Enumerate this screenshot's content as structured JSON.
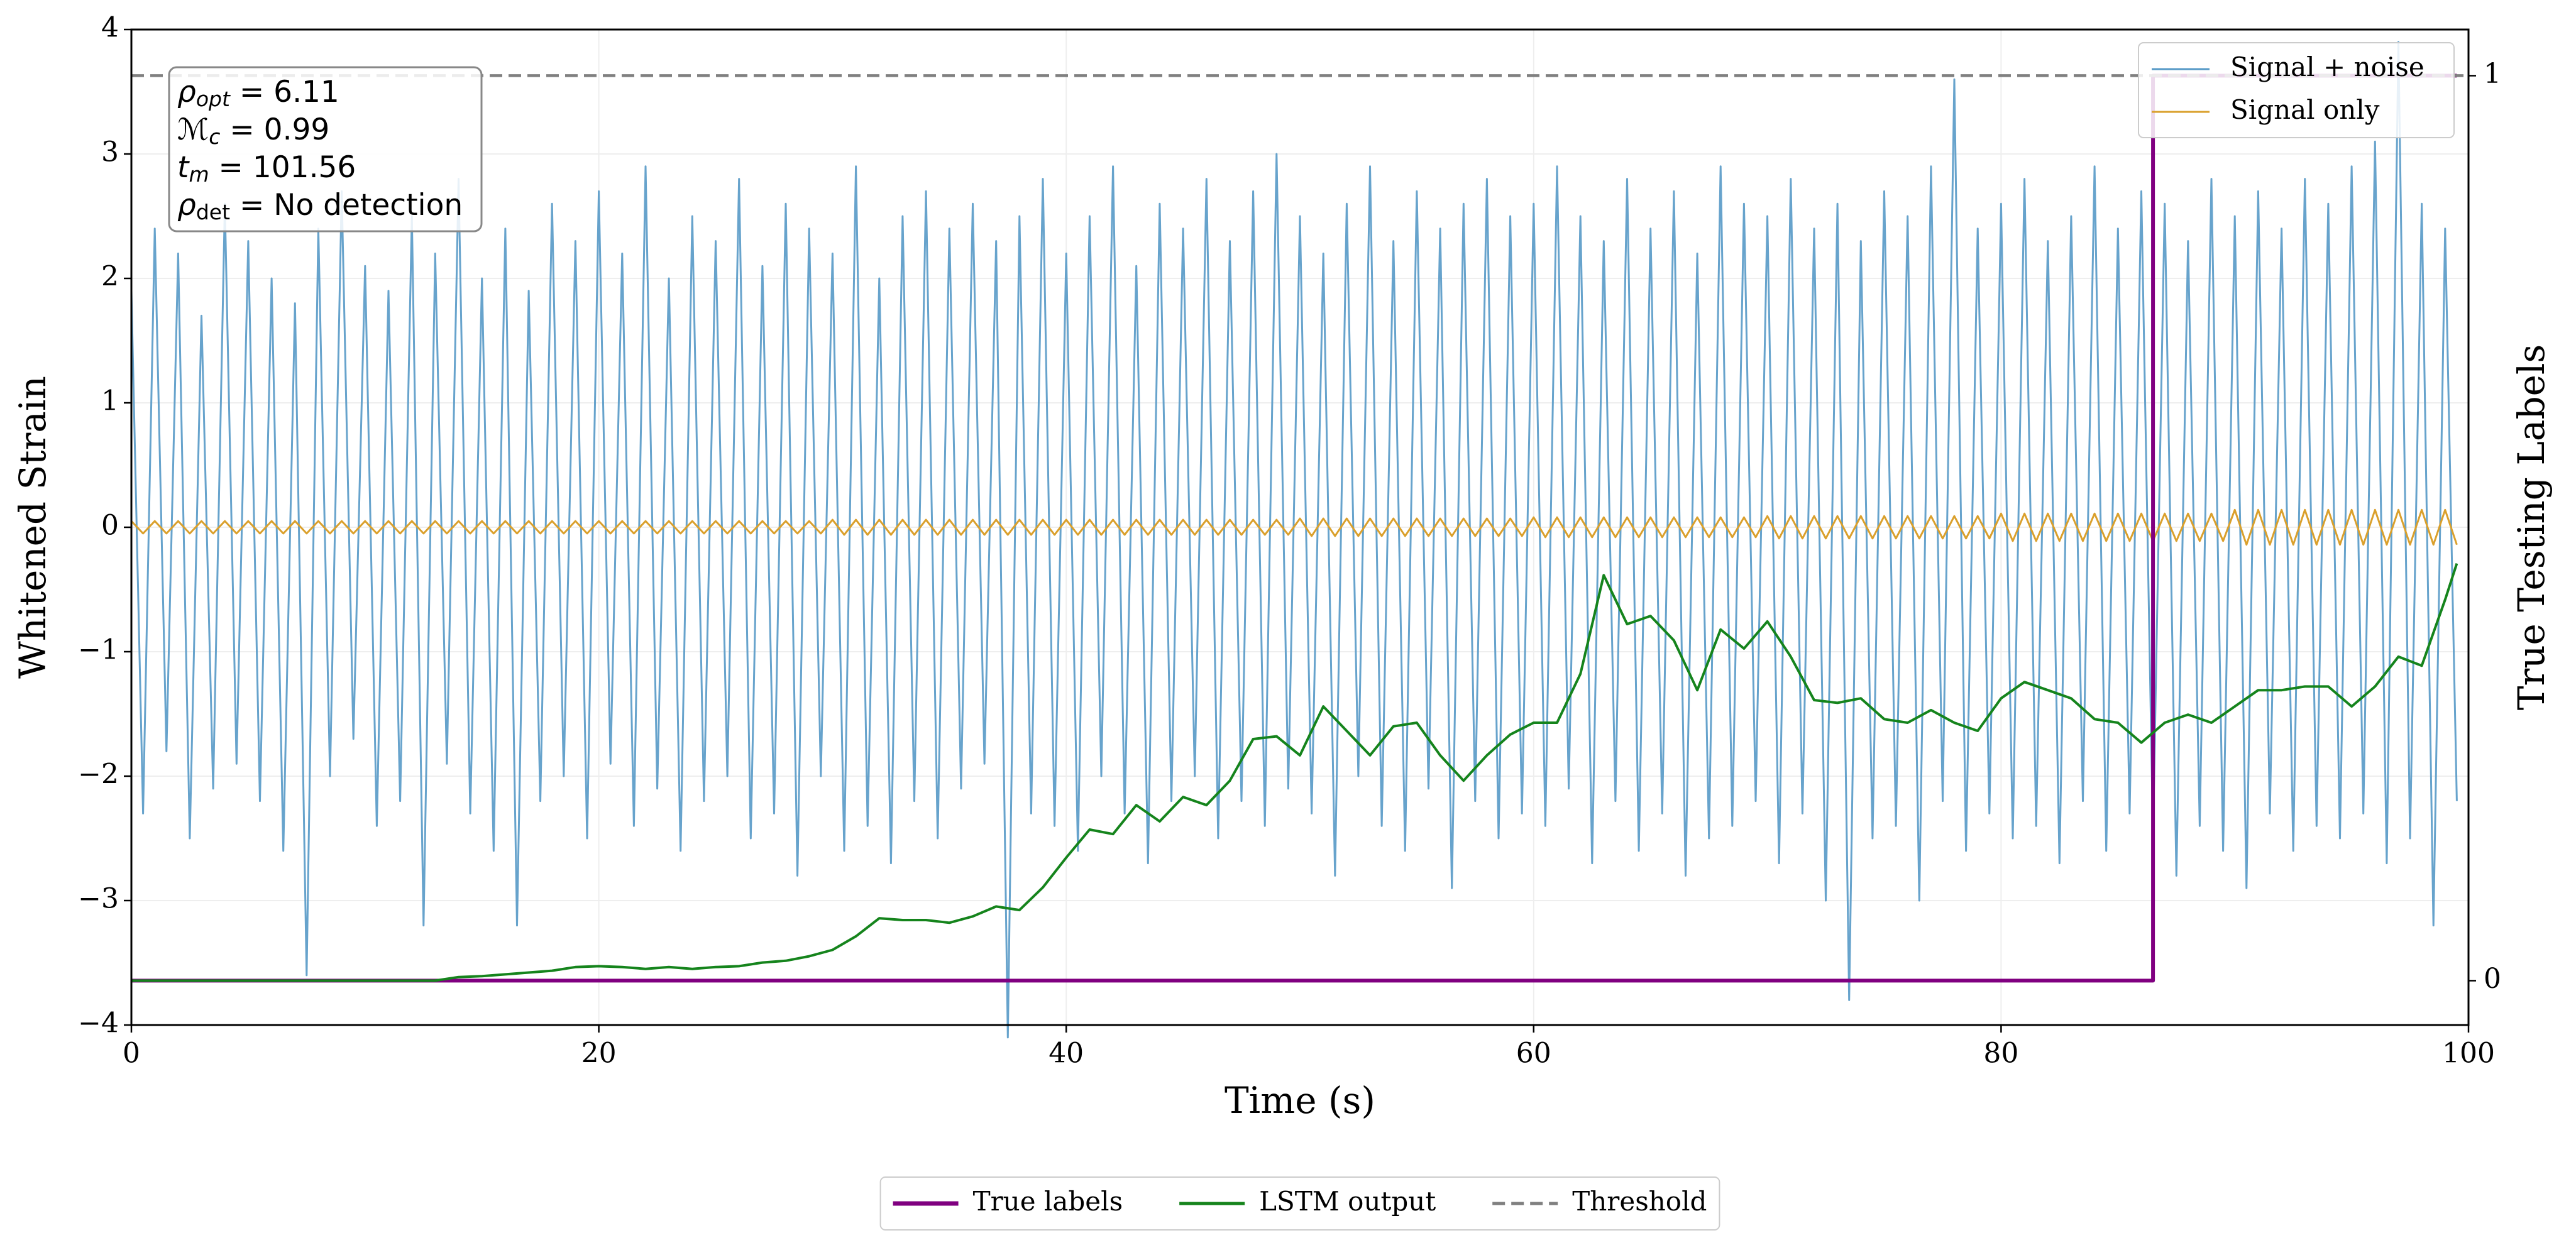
{
  "chart_data": {
    "type": "line",
    "xlabel": "Time (s)",
    "ylabel": "Whitened Strain",
    "y2label": "True Testing Labels",
    "xlim": [
      0,
      100
    ],
    "xticks": [
      0,
      20,
      40,
      60,
      80,
      100
    ],
    "ylim": [
      -4,
      4
    ],
    "yticks": [
      {
        "value": -4,
        "label": "−4"
      },
      {
        "value": -3,
        "label": "−3"
      },
      {
        "value": -2,
        "label": "−2"
      },
      {
        "value": -1,
        "label": "−1"
      },
      0,
      1,
      2,
      3,
      4
    ],
    "y2lim": [
      -0.049,
      1.051
    ],
    "y2ticks": [
      0,
      1
    ],
    "grid": true,
    "legend_loc": "upper right",
    "legend2_loc": "lower center",
    "annotations": [
      {
        "symbol": "ρ",
        "sub": "opt",
        "text": " = 6.11"
      },
      {
        "symbol": "ℳ",
        "sub": "c",
        "text": " = 0.99"
      },
      {
        "symbol": "t",
        "sub": "m",
        "text": " = 101.56"
      },
      {
        "symbol": "ρ",
        "sub": "det",
        "text": " = No detection"
      }
    ],
    "x": [
      0,
      0.5,
      1,
      1.5,
      2,
      2.5,
      3,
      3.5,
      4,
      4.5,
      5,
      5.5,
      6,
      6.5,
      7,
      7.5,
      8,
      8.5,
      9,
      9.5,
      10,
      10.5,
      11,
      11.5,
      12,
      12.5,
      13,
      13.5,
      14,
      14.5,
      15,
      15.5,
      16,
      16.5,
      17,
      17.5,
      18,
      18.5,
      19,
      19.5,
      20,
      20.5,
      21,
      21.5,
      22,
      22.5,
      23,
      23.5,
      24,
      24.5,
      25,
      25.5,
      26,
      26.5,
      27,
      27.5,
      28,
      28.5,
      29,
      29.5,
      30,
      30.5,
      31,
      31.5,
      32,
      32.5,
      33,
      33.5,
      34,
      34.5,
      35,
      35.5,
      36,
      36.5,
      37,
      37.5,
      38,
      38.5,
      39,
      39.5,
      40,
      40.5,
      41,
      41.5,
      42,
      42.5,
      43,
      43.5,
      44,
      44.5,
      45,
      45.5,
      46,
      46.5,
      47,
      47.5,
      48,
      48.5,
      49,
      49.5,
      50,
      50.5,
      51,
      51.5,
      52,
      52.5,
      53,
      53.5,
      54,
      54.5,
      55,
      55.5,
      56,
      56.5,
      57,
      57.5,
      58,
      58.5,
      59,
      59.5,
      60,
      60.5,
      61,
      61.5,
      62,
      62.5,
      63,
      63.5,
      64,
      64.5,
      65,
      65.5,
      66,
      66.5,
      67,
      67.5,
      68,
      68.5,
      69,
      69.5,
      70,
      70.5,
      71,
      71.5,
      72,
      72.5,
      73,
      73.5,
      74,
      74.5,
      75,
      75.5,
      76,
      76.5,
      77,
      77.5,
      78,
      78.5,
      79,
      79.5,
      80,
      80.5,
      81,
      81.5,
      82,
      82.5,
      83,
      83.5,
      84,
      84.5,
      85,
      85.5,
      86,
      86.5,
      87,
      87.5,
      88,
      88.5,
      89,
      89.5,
      90,
      90.5,
      91,
      91.5,
      92,
      92.5,
      93,
      93.5,
      94,
      94.5,
      95,
      95.5,
      96,
      96.5,
      97,
      97.5,
      98,
      98.5,
      99,
      99.5
    ],
    "series": [
      {
        "name": "Signal + noise",
        "color": "#5799c7",
        "values": [
          1.9,
          -2.3,
          2.4,
          -1.8,
          2.2,
          -2.5,
          1.7,
          -2.1,
          2.6,
          -1.9,
          2.3,
          -2.2,
          2.0,
          -2.6,
          1.8,
          -3.6,
          2.4,
          -2.0,
          2.7,
          -1.7,
          2.1,
          -2.4,
          1.9,
          -2.2,
          2.5,
          -3.2,
          2.2,
          -1.9,
          2.8,
          -2.3,
          2.0,
          -2.6,
          2.4,
          -3.2,
          1.9,
          -2.2,
          2.6,
          -2.0,
          2.3,
          -2.5,
          2.7,
          -1.9,
          2.2,
          -2.4,
          2.9,
          -2.1,
          2.0,
          -2.6,
          2.5,
          -2.2,
          2.3,
          -2.0,
          2.8,
          -2.5,
          2.1,
          -2.3,
          2.6,
          -2.8,
          2.4,
          -2.0,
          2.2,
          -2.6,
          2.9,
          -2.4,
          2.0,
          -2.7,
          2.5,
          -2.2,
          2.7,
          -2.5,
          2.4,
          -2.1,
          2.6,
          -1.9,
          2.3,
          -4.1,
          2.5,
          -2.3,
          2.8,
          -2.4,
          2.2,
          -2.6,
          2.5,
          -2.0,
          2.9,
          -2.3,
          2.1,
          -2.7,
          2.6,
          -2.2,
          2.4,
          -2.0,
          2.8,
          -2.5,
          2.3,
          -2.2,
          2.7,
          -2.4,
          3.0,
          -2.1,
          2.5,
          -2.3,
          2.2,
          -2.8,
          2.6,
          -2.0,
          2.9,
          -2.4,
          2.3,
          -2.6,
          2.7,
          -2.1,
          2.4,
          -2.9,
          2.6,
          -2.2,
          2.8,
          -2.5,
          2.5,
          -2.3,
          2.6,
          -2.4,
          2.9,
          -2.1,
          2.5,
          -2.7,
          2.3,
          -2.2,
          2.8,
          -2.6,
          2.4,
          -2.3,
          2.7,
          -2.8,
          2.2,
          -2.5,
          2.9,
          -2.4,
          2.6,
          -2.2,
          2.5,
          -2.7,
          2.8,
          -2.3,
          2.4,
          -3.0,
          2.6,
          -3.8,
          2.3,
          -2.5,
          2.7,
          -2.4,
          2.5,
          -3.0,
          2.9,
          -2.2,
          3.6,
          -2.6,
          2.4,
          -2.3,
          2.6,
          -2.5,
          2.8,
          -2.4,
          2.3,
          -2.7,
          2.5,
          -2.2,
          2.9,
          -2.6,
          2.4,
          -2.3,
          2.7,
          -2.5,
          2.6,
          -2.8,
          2.3,
          -2.4,
          2.8,
          -2.6,
          2.5,
          -2.9,
          2.7,
          -2.3,
          2.4,
          -2.6,
          2.8,
          -2.4,
          2.6,
          -2.5,
          2.9,
          -2.3,
          3.1,
          -2.7,
          3.9,
          -2.5,
          2.6,
          -3.2,
          2.4,
          -2.2
        ]
      },
      {
        "name": "Signal only",
        "color": "#daa02c",
        "values": [
          0.05,
          -0.05,
          0.05,
          -0.05,
          0.05,
          -0.05,
          0.05,
          -0.05,
          0.05,
          -0.05,
          0.05,
          -0.05,
          0.05,
          -0.05,
          0.05,
          -0.05,
          0.05,
          -0.05,
          0.05,
          -0.05,
          0.05,
          -0.05,
          0.05,
          -0.05,
          0.05,
          -0.05,
          0.05,
          -0.05,
          0.05,
          -0.05,
          0.05,
          -0.05,
          0.05,
          -0.05,
          0.05,
          -0.05,
          0.05,
          -0.05,
          0.05,
          -0.05,
          0.05,
          -0.05,
          0.05,
          -0.05,
          0.05,
          -0.05,
          0.05,
          -0.05,
          0.05,
          -0.05,
          0.05,
          -0.05,
          0.05,
          -0.05,
          0.05,
          -0.05,
          0.05,
          -0.05,
          0.05,
          -0.05,
          0.06,
          -0.06,
          0.06,
          -0.06,
          0.06,
          -0.06,
          0.06,
          -0.06,
          0.06,
          -0.06,
          0.06,
          -0.06,
          0.06,
          -0.06,
          0.06,
          -0.06,
          0.06,
          -0.06,
          0.06,
          -0.06,
          0.06,
          -0.06,
          0.06,
          -0.06,
          0.06,
          -0.06,
          0.06,
          -0.06,
          0.06,
          -0.06,
          0.06,
          -0.06,
          0.06,
          -0.06,
          0.06,
          -0.06,
          0.06,
          -0.06,
          0.06,
          -0.06,
          0.07,
          -0.07,
          0.07,
          -0.07,
          0.07,
          -0.07,
          0.07,
          -0.07,
          0.07,
          -0.07,
          0.07,
          -0.07,
          0.07,
          -0.07,
          0.07,
          -0.07,
          0.07,
          -0.07,
          0.07,
          -0.07,
          0.08,
          -0.08,
          0.08,
          -0.08,
          0.08,
          -0.08,
          0.08,
          -0.08,
          0.08,
          -0.08,
          0.08,
          -0.08,
          0.08,
          -0.08,
          0.08,
          -0.08,
          0.08,
          -0.08,
          0.08,
          -0.08,
          0.09,
          -0.09,
          0.09,
          -0.09,
          0.09,
          -0.09,
          0.09,
          -0.09,
          0.09,
          -0.09,
          0.09,
          -0.09,
          0.09,
          -0.09,
          0.09,
          -0.09,
          0.09,
          -0.09,
          0.09,
          -0.09,
          0.11,
          -0.11,
          0.11,
          -0.11,
          0.11,
          -0.11,
          0.11,
          -0.11,
          0.11,
          -0.11,
          0.11,
          -0.11,
          0.11,
          -0.11,
          0.11,
          -0.11,
          0.11,
          -0.11,
          0.11,
          -0.11,
          0.14,
          -0.14,
          0.14,
          -0.14,
          0.14,
          -0.14,
          0.14,
          -0.14,
          0.14,
          -0.14,
          0.14,
          -0.14,
          0.14,
          -0.14,
          0.14,
          -0.14,
          0.14,
          -0.14,
          0.14,
          -0.14
        ]
      },
      {
        "name": "True labels",
        "color": "#800080",
        "axis": "y2",
        "x": [
          0,
          86.5,
          86.5,
          99.5
        ],
        "values": [
          0,
          0,
          1,
          1
        ]
      },
      {
        "name": "LSTM output",
        "color": "#15841c",
        "axis": "y2",
        "x": [
          0,
          1,
          2,
          3,
          4,
          5,
          6,
          7,
          8,
          9,
          10,
          11,
          12,
          13,
          14,
          15,
          16,
          17,
          18,
          19,
          20,
          21,
          22,
          23,
          24,
          25,
          26,
          27,
          28,
          29,
          30,
          31,
          32,
          33,
          34,
          35,
          36,
          37,
          38,
          39,
          40,
          41,
          42,
          43,
          44,
          45,
          46,
          47,
          48,
          49,
          50,
          51,
          52,
          53,
          54,
          55,
          56,
          57,
          58,
          59,
          60,
          61,
          62,
          63,
          64,
          65,
          66,
          67,
          68,
          69,
          70,
          71,
          72,
          73,
          74,
          75,
          76,
          77,
          78,
          79,
          80,
          81,
          82,
          83,
          84,
          85,
          86,
          87,
          88,
          89,
          90,
          91,
          92,
          93,
          94,
          95,
          96,
          97,
          98,
          99,
          99.5
        ],
        "values": [
          0,
          0,
          0,
          0,
          0,
          0,
          0,
          0,
          0,
          0,
          0,
          0,
          0,
          0,
          0.004,
          0.005,
          0.007,
          0.009,
          0.011,
          0.015,
          0.016,
          0.015,
          0.013,
          0.015,
          0.013,
          0.015,
          0.016,
          0.02,
          0.022,
          0.027,
          0.034,
          0.049,
          0.069,
          0.067,
          0.067,
          0.064,
          0.071,
          0.082,
          0.078,
          0.103,
          0.136,
          0.167,
          0.162,
          0.194,
          0.176,
          0.203,
          0.194,
          0.221,
          0.267,
          0.27,
          0.249,
          0.303,
          0.276,
          0.249,
          0.281,
          0.285,
          0.249,
          0.221,
          0.249,
          0.272,
          0.285,
          0.285,
          0.339,
          0.448,
          0.394,
          0.403,
          0.376,
          0.321,
          0.388,
          0.367,
          0.397,
          0.358,
          0.31,
          0.307,
          0.312,
          0.289,
          0.285,
          0.299,
          0.285,
          0.276,
          0.312,
          0.33,
          0.321,
          0.312,
          0.289,
          0.285,
          0.263,
          0.285,
          0.294,
          0.285,
          0.303,
          0.321,
          0.321,
          0.325,
          0.325,
          0.303,
          0.325,
          0.358,
          0.348,
          0.421,
          0.461
        ]
      },
      {
        "name": "Threshold",
        "color": "#808080",
        "axis": "y2",
        "linestyle": "dashed",
        "x": [
          0,
          100
        ],
        "values": [
          1,
          1
        ]
      }
    ]
  }
}
